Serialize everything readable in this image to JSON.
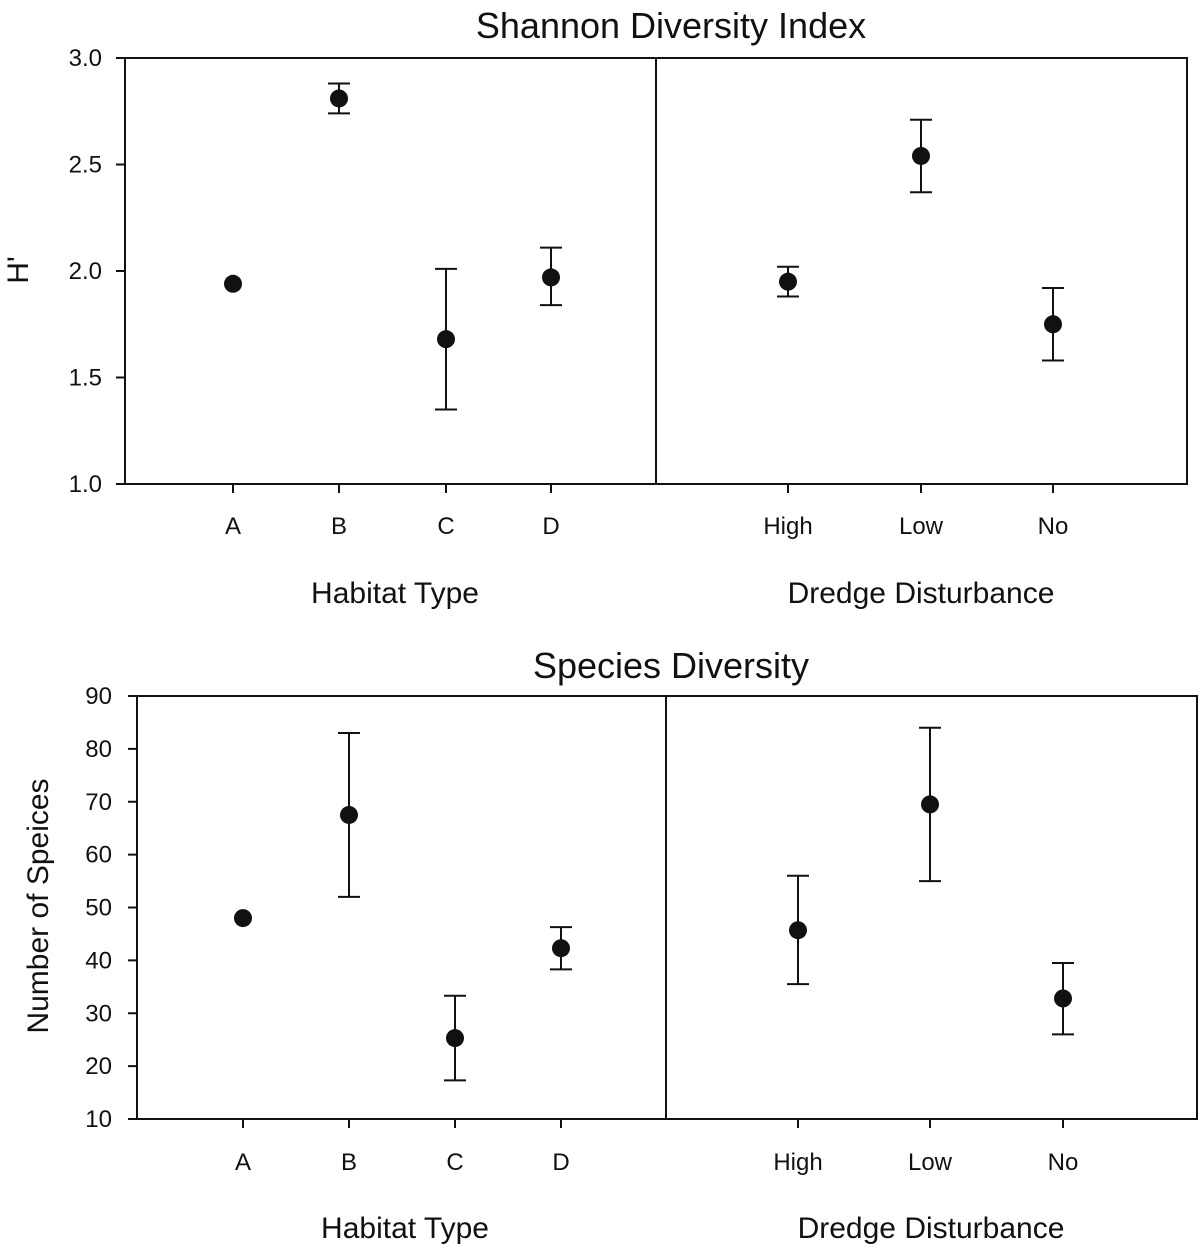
{
  "chart_data": [
    {
      "type": "scatter",
      "title": "Shannon Diversity Index",
      "ylabel": "H'",
      "ylim": [
        1.0,
        3.0
      ],
      "yticks": [
        "1.0",
        "1.5",
        "2.0",
        "2.5",
        "3.0"
      ],
      "yticks_values": [
        1.0,
        1.5,
        2.0,
        2.5,
        3.0
      ],
      "panels": [
        {
          "xlabel": "Habitat Type",
          "categories": [
            "A",
            "B",
            "C",
            "D"
          ],
          "values": [
            1.94,
            2.81,
            1.68,
            1.97
          ],
          "err_low": [
            1.94,
            2.74,
            1.35,
            1.84
          ],
          "err_high": [
            1.94,
            2.88,
            2.01,
            2.11
          ]
        },
        {
          "xlabel": "Dredge Disturbance",
          "categories": [
            "High",
            "Low",
            "No"
          ],
          "values": [
            1.95,
            2.54,
            1.75
          ],
          "err_low": [
            1.88,
            2.37,
            1.58
          ],
          "err_high": [
            2.02,
            2.71,
            1.92
          ]
        }
      ]
    },
    {
      "type": "scatter",
      "title": "Species Diversity",
      "ylabel": "Number of Speices",
      "ylim": [
        10,
        90
      ],
      "yticks": [
        "10",
        "20",
        "30",
        "40",
        "50",
        "60",
        "70",
        "80",
        "90"
      ],
      "yticks_values": [
        10,
        20,
        30,
        40,
        50,
        60,
        70,
        80,
        90
      ],
      "panels": [
        {
          "xlabel": "Habitat Type",
          "categories": [
            "A",
            "B",
            "C",
            "D"
          ],
          "values": [
            48,
            67.5,
            25.3,
            42.3
          ],
          "err_low": [
            48,
            52,
            17.3,
            38.3
          ],
          "err_high": [
            48,
            83,
            33.3,
            46.3
          ]
        },
        {
          "xlabel": "Dredge Disturbance",
          "categories": [
            "High",
            "Low",
            "No"
          ],
          "values": [
            45.7,
            69.5,
            32.8
          ],
          "err_low": [
            35.5,
            55,
            26
          ],
          "err_high": [
            56,
            84,
            39.5
          ]
        }
      ]
    }
  ]
}
